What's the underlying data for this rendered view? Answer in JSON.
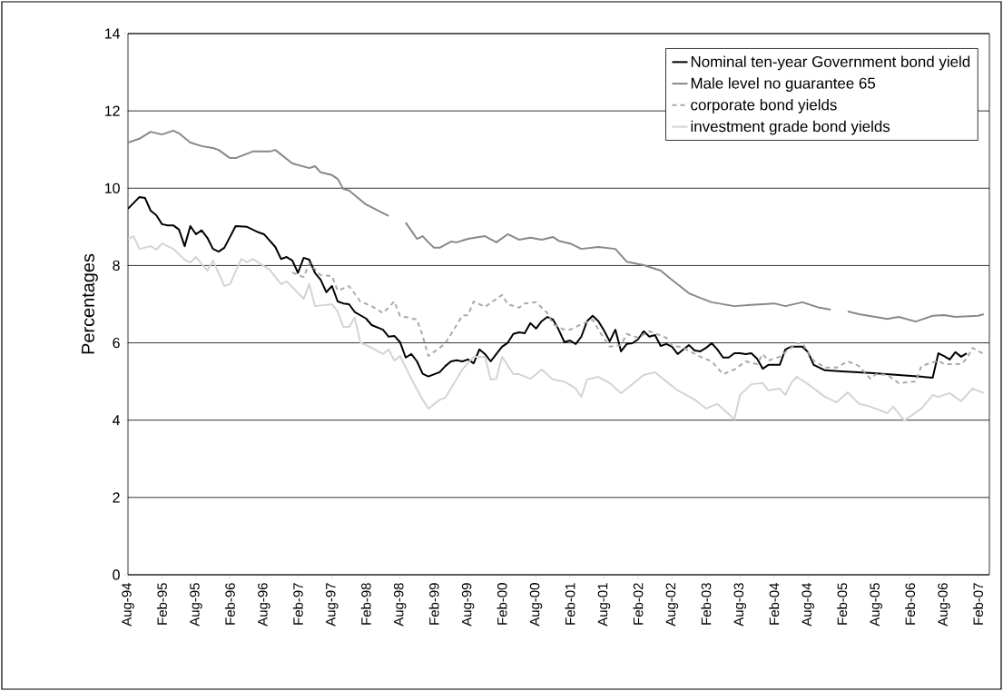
{
  "chart_data": {
    "type": "line",
    "ylabel": "Percentages",
    "xlim": [
      "1994-08",
      "2007-04"
    ],
    "ylim": [
      0,
      14
    ],
    "yticks": [
      0,
      2,
      4,
      6,
      8,
      10,
      12,
      14
    ],
    "grid": "y",
    "legend": "top right",
    "xticks": [
      {
        "value": "1994-08",
        "label": "Aug-94"
      },
      {
        "value": "1995-02",
        "label": "Feb-95"
      },
      {
        "value": "1995-08",
        "label": "Aug-95"
      },
      {
        "value": "1996-02",
        "label": "Feb-96"
      },
      {
        "value": "1996-08",
        "label": "Aug-96"
      },
      {
        "value": "1997-02",
        "label": "Feb-97"
      },
      {
        "value": "1997-08",
        "label": "Aug-97"
      },
      {
        "value": "1998-02",
        "label": "Feb-98"
      },
      {
        "value": "1998-08",
        "label": "Aug-98"
      },
      {
        "value": "1999-02",
        "label": "Feb-99"
      },
      {
        "value": "1999-08",
        "label": "Aug-99"
      },
      {
        "value": "2000-02",
        "label": "Feb-00"
      },
      {
        "value": "2000-08",
        "label": "Aug-00"
      },
      {
        "value": "2001-02",
        "label": "Feb-01"
      },
      {
        "value": "2001-08",
        "label": "Aug-01"
      },
      {
        "value": "2002-02",
        "label": "Feb-02"
      },
      {
        "value": "2002-08",
        "label": "Aug-02"
      },
      {
        "value": "2003-02",
        "label": "Feb-03"
      },
      {
        "value": "2003-08",
        "label": "Aug-03"
      },
      {
        "value": "2004-02",
        "label": "Feb-04"
      },
      {
        "value": "2004-08",
        "label": "Aug-04"
      },
      {
        "value": "2005-02",
        "label": "Feb-05"
      },
      {
        "value": "2005-08",
        "label": "Aug-05"
      },
      {
        "value": "2006-02",
        "label": "Feb-06"
      },
      {
        "value": "2006-08",
        "label": "Aug-06"
      },
      {
        "value": "2007-02",
        "label": "Feb-07"
      }
    ],
    "series": [
      {
        "name": "Nominal ten-year Government bond yield",
        "color": "#000000",
        "line_style": "solid",
        "x": [
          "1994-08",
          "1994-10",
          "1994-11",
          "1994-12",
          "1995-01",
          "1995-02",
          "1995-03",
          "1995-04",
          "1995-05",
          "1995-06",
          "1995-07",
          "1995-08",
          "1995-09",
          "1995-10",
          "1995-11",
          "1995-12",
          "1996-01",
          "1996-03",
          "1996-05",
          "1996-07",
          "1996-08",
          "1996-10",
          "1996-11",
          "1996-12",
          "1997-01",
          "1997-02",
          "1997-03",
          "1997-04",
          "1997-05",
          "1997-06",
          "1997-07",
          "1997-08",
          "1997-09",
          "1997-10",
          "1997-11",
          "1997-12",
          "1998-02",
          "1998-03",
          "1998-05",
          "1998-06",
          "1998-07",
          "1998-08",
          "1998-09",
          "1998-10",
          "1998-11",
          "1998-12",
          "1999-01",
          "1999-03",
          "1999-04",
          "1999-05",
          "1999-06",
          "1999-07",
          "1999-08",
          "1999-09",
          "1999-10",
          "1999-11",
          "1999-12",
          "2000-01",
          "2000-02",
          "2000-03",
          "2000-04",
          "2000-05",
          "2000-06",
          "2000-07",
          "2000-08",
          "2000-09",
          "2000-10",
          "2000-11",
          "2000-12",
          "2001-01",
          "2001-02",
          "2001-03",
          "2001-04",
          "2001-05",
          "2001-06",
          "2001-07",
          "2001-08",
          "2001-09",
          "2001-10",
          "2001-11",
          "2001-12",
          "2002-01",
          "2002-02",
          "2002-03",
          "2002-04",
          "2002-05",
          "2002-06",
          "2002-07",
          "2002-08",
          "2002-09",
          "2002-10",
          "2002-11",
          "2002-12",
          "2003-01",
          "2003-02",
          "2003-03",
          "2003-04",
          "2003-05",
          "2003-06",
          "2003-07",
          "2003-08",
          "2003-09",
          "2003-10",
          "2003-11",
          "2003-12",
          "2004-01",
          "2004-02",
          "2004-03",
          "2004-04",
          "2004-05",
          "2004-07",
          "2004-08",
          "2004-09",
          "2004-11",
          "2005-02",
          "2005-07",
          "2005-12",
          "2006-06",
          "2006-07",
          "2006-08",
          "2006-09",
          "2006-10",
          "2006-11",
          "2006-12"
        ],
        "values": [
          9.47,
          9.77,
          9.75,
          9.42,
          9.3,
          9.07,
          9.04,
          9.04,
          8.93,
          8.5,
          9.02,
          8.81,
          8.91,
          8.72,
          8.43,
          8.36,
          8.46,
          9.02,
          9.0,
          8.86,
          8.81,
          8.48,
          8.17,
          8.22,
          8.13,
          7.81,
          8.2,
          8.15,
          7.81,
          7.63,
          7.31,
          7.47,
          7.07,
          7.02,
          7.0,
          6.8,
          6.63,
          6.46,
          6.34,
          6.16,
          6.18,
          6.02,
          5.62,
          5.71,
          5.52,
          5.2,
          5.13,
          5.24,
          5.4,
          5.52,
          5.55,
          5.52,
          5.57,
          5.47,
          5.83,
          5.71,
          5.52,
          5.71,
          5.9,
          6.0,
          6.23,
          6.27,
          6.25,
          6.51,
          6.37,
          6.56,
          6.67,
          6.6,
          6.34,
          6.02,
          6.06,
          5.97,
          6.16,
          6.56,
          6.7,
          6.56,
          6.32,
          6.04,
          6.34,
          5.78,
          5.97,
          5.99,
          6.09,
          6.3,
          6.16,
          6.2,
          5.92,
          5.97,
          5.9,
          5.71,
          5.83,
          5.94,
          5.8,
          5.78,
          5.87,
          5.99,
          5.83,
          5.62,
          5.62,
          5.73,
          5.73,
          5.71,
          5.73,
          5.59,
          5.33,
          5.43,
          5.43,
          5.43,
          5.83,
          5.9,
          5.9,
          5.76,
          5.43,
          5.29,
          5.26,
          5.22,
          5.17,
          5.1,
          5.73,
          5.66,
          5.57,
          5.76,
          5.64,
          5.73
        ]
      },
      {
        "name": "Male level no guarantee 65",
        "color": "#888888",
        "line_style": "solid",
        "x": [
          "1994-08",
          "1994-10",
          "1994-12",
          "1995-02",
          "1995-04",
          "1995-05",
          "1995-07",
          "1995-09",
          "1995-11",
          "1995-12",
          "1996-02",
          "1996-03",
          "1996-06",
          "1996-09",
          "1996-10",
          "1997-01",
          "1997-04",
          "1997-05",
          "1997-06",
          "1997-08",
          "1997-09",
          "1997-10",
          "1997-11",
          "1998-02",
          "1998-06",
          "1998-07",
          "1998-09",
          "1998-11",
          "1998-12",
          "1999-01",
          "1999-02",
          "1999-03",
          "1999-05",
          "1999-06",
          "1999-08",
          "1999-11",
          "2000-01",
          "2000-03",
          "2000-05",
          "2000-07",
          "2000-09",
          "2000-11",
          "2000-12",
          "2001-02",
          "2001-04",
          "2001-07",
          "2001-10",
          "2001-12",
          "2002-03",
          "2002-06",
          "2002-08",
          "2002-11",
          "2003-01",
          "2003-03",
          "2003-07",
          "2003-10",
          "2003-12",
          "2004-02",
          "2004-04",
          "2004-07",
          "2004-10",
          "2004-12",
          "2005-01",
          "2005-03",
          "2005-05",
          "2005-10",
          "2005-12",
          "2006-03",
          "2006-06",
          "2006-08",
          "2006-10",
          "2007-02",
          "2007-03"
        ],
        "values": [
          11.18,
          11.28,
          11.46,
          11.39,
          11.49,
          11.42,
          11.18,
          11.09,
          11.04,
          10.99,
          10.78,
          10.78,
          10.95,
          10.95,
          10.99,
          10.64,
          10.52,
          10.57,
          10.41,
          10.34,
          10.24,
          9.98,
          9.94,
          9.58,
          9.28,
          null,
          9.11,
          8.69,
          8.76,
          8.6,
          8.46,
          8.46,
          8.62,
          8.6,
          8.69,
          8.76,
          8.6,
          8.81,
          8.67,
          8.72,
          8.67,
          8.74,
          8.64,
          8.57,
          8.43,
          8.48,
          8.43,
          8.1,
          8.01,
          7.87,
          7.63,
          7.28,
          7.16,
          7.05,
          6.95,
          6.98,
          7.0,
          7.02,
          6.95,
          7.05,
          6.91,
          6.86,
          null,
          6.81,
          6.74,
          6.62,
          6.67,
          6.55,
          6.7,
          6.72,
          6.67,
          6.7,
          6.74
        ]
      },
      {
        "name": "corporate bond yields",
        "color": "#aaaaaa",
        "line_style": "dashed",
        "x": [
          "1997-01",
          "1997-03",
          "1997-04",
          "1997-06",
          "1997-08",
          "1997-09",
          "1997-11",
          "1998-01",
          "1998-03",
          "1998-05",
          "1998-07",
          "1998-08",
          "1998-11",
          "1998-12",
          "1999-01",
          "1999-03",
          "1999-04",
          "1999-07",
          "1999-08",
          "1999-09",
          "1999-11",
          "2000-02",
          "2000-03",
          "2000-05",
          "2000-06",
          "2000-08",
          "2000-10",
          "2000-11",
          "2001-01",
          "2001-02",
          "2001-04",
          "2001-06",
          "2001-07",
          "2001-09",
          "2001-11",
          "2001-12",
          "2002-02",
          "2002-04",
          "2002-07",
          "2002-08",
          "2002-10",
          "2003-01",
          "2003-03",
          "2003-05",
          "2003-07",
          "2003-09",
          "2003-11",
          "2003-12",
          "2004-01",
          "2004-03",
          "2004-06",
          "2004-07",
          "2004-09",
          "2004-11",
          "2005-01",
          "2005-03",
          "2005-05",
          "2005-07",
          "2005-08",
          "2005-10",
          "2005-12",
          "2006-03",
          "2006-04",
          "2006-05",
          "2006-07",
          "2006-08",
          "2006-11",
          "2006-12",
          "2007-01",
          "2007-03"
        ],
        "values": [
          7.82,
          7.7,
          8.06,
          7.75,
          7.73,
          7.35,
          7.47,
          7.07,
          6.95,
          6.77,
          7.07,
          6.7,
          6.6,
          6.18,
          5.66,
          5.87,
          5.99,
          6.7,
          6.72,
          7.07,
          6.93,
          7.24,
          7.0,
          6.91,
          7.02,
          7.05,
          6.77,
          6.48,
          6.34,
          6.34,
          6.48,
          6.6,
          6.34,
          5.9,
          5.94,
          6.23,
          6.13,
          6.3,
          6.13,
          5.94,
          5.87,
          5.64,
          5.52,
          5.19,
          5.31,
          5.52,
          5.45,
          5.71,
          5.54,
          5.64,
          5.99,
          5.99,
          5.54,
          5.36,
          5.36,
          5.52,
          5.4,
          5.07,
          5.19,
          5.17,
          4.96,
          5.0,
          5.4,
          5.45,
          5.54,
          5.45,
          5.45,
          5.59,
          5.87,
          5.71
        ]
      },
      {
        "name": "investment grade bond yields",
        "color": "#d4d4d4",
        "line_style": "solid",
        "x": [
          "1994-08",
          "1994-09",
          "1994-10",
          "1994-12",
          "1995-01",
          "1995-02",
          "1995-04",
          "1995-06",
          "1995-07",
          "1995-08",
          "1995-10",
          "1995-11",
          "1996-01",
          "1996-02",
          "1996-04",
          "1996-05",
          "1996-06",
          "1996-09",
          "1996-11",
          "1996-12",
          "1997-03",
          "1997-04",
          "1997-05",
          "1997-08",
          "1997-09",
          "1997-10",
          "1997-11",
          "1997-12",
          "1998-01",
          "1998-03",
          "1998-05",
          "1998-06",
          "1998-07",
          "1998-08",
          "1998-10",
          "1998-12",
          "1999-01",
          "1999-03",
          "1999-04",
          "1999-07",
          "1999-09",
          "1999-11",
          "1999-12",
          "2000-01",
          "2000-02",
          "2000-04",
          "2000-05",
          "2000-07",
          "2000-09",
          "2000-11",
          "2001-01",
          "2001-03",
          "2001-04",
          "2001-05",
          "2001-07",
          "2001-09",
          "2001-11",
          "2002-01",
          "2002-03",
          "2002-05",
          "2002-07",
          "2002-09",
          "2002-12",
          "2003-02",
          "2003-04",
          "2003-07",
          "2003-08",
          "2003-10",
          "2003-12",
          "2004-01",
          "2004-03",
          "2004-04",
          "2004-05",
          "2004-06",
          "2004-08",
          "2004-11",
          "2005-01",
          "2005-03",
          "2005-05",
          "2005-07",
          "2005-10",
          "2005-11",
          "2006-01",
          "2006-04",
          "2006-06",
          "2006-07",
          "2006-09",
          "2006-11",
          "2007-01",
          "2007-03"
        ],
        "values": [
          8.69,
          8.76,
          8.43,
          8.5,
          8.41,
          8.57,
          8.43,
          8.15,
          8.08,
          8.22,
          7.87,
          8.13,
          7.47,
          7.52,
          8.17,
          8.08,
          8.17,
          7.89,
          7.52,
          7.59,
          7.14,
          7.52,
          6.95,
          7.0,
          6.81,
          6.41,
          6.41,
          6.65,
          6.01,
          5.87,
          5.71,
          5.83,
          5.54,
          5.66,
          5.07,
          4.53,
          4.3,
          4.53,
          4.58,
          5.31,
          5.64,
          5.64,
          5.05,
          5.07,
          5.64,
          5.19,
          5.19,
          5.07,
          5.31,
          5.05,
          5.0,
          4.82,
          4.6,
          5.05,
          5.12,
          4.96,
          4.7,
          4.93,
          5.17,
          5.24,
          5.0,
          4.77,
          4.53,
          4.3,
          4.42,
          4.02,
          4.65,
          4.93,
          4.96,
          4.77,
          4.82,
          4.65,
          4.96,
          5.12,
          4.93,
          4.6,
          4.46,
          4.72,
          4.42,
          4.35,
          4.18,
          4.35,
          3.99,
          4.3,
          4.65,
          4.6,
          4.7,
          4.49,
          4.82,
          4.7
        ]
      }
    ]
  }
}
